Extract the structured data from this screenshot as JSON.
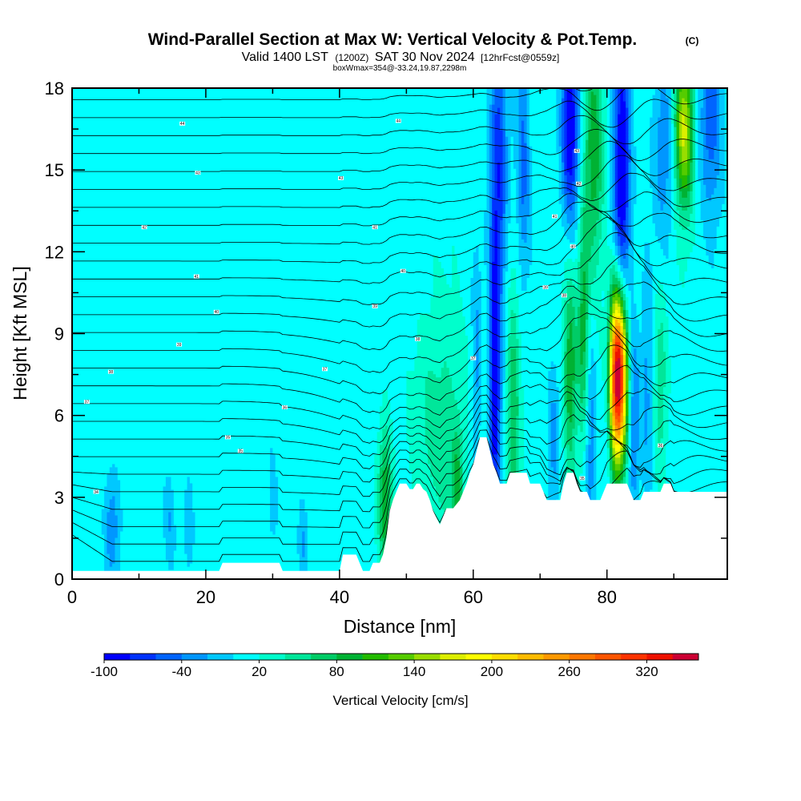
{
  "chart_data": {
    "type": "contour-cross-section",
    "title": "Wind-Parallel Section at Max W: Vertical Velocity & Pot.Temp.",
    "copyright_mark": "(C)",
    "subtitle": {
      "valid_prefix": "Valid 1400 LST",
      "utc_time": "(1200Z)",
      "date": "SAT 30 Nov 2024",
      "forecast_info": "[12hrFcst@0559z]",
      "box_info": "boxWmax=354@-33.24,19.87,2298m"
    },
    "xlabel": "Distance [nm]",
    "ylabel": "Height [Kft MSL]",
    "xlim": [
      0,
      98
    ],
    "ylim": [
      0,
      18
    ],
    "x_ticks": [
      0,
      20,
      40,
      60,
      80
    ],
    "y_ticks": [
      0,
      3,
      6,
      9,
      12,
      15,
      18
    ],
    "colorbar": {
      "title": "Vertical Velocity [cm/s]",
      "min": -100,
      "step": 20,
      "tick_labels": [
        "-100",
        "-40",
        "20",
        "80",
        "140",
        "200",
        "260",
        "320"
      ],
      "colors": [
        "#0000ff",
        "#0032ff",
        "#0064ff",
        "#0096ff",
        "#00c8ff",
        "#00ffff",
        "#00ffcc",
        "#00e69a",
        "#00cc66",
        "#00b233",
        "#22bb00",
        "#55cc00",
        "#99dd00",
        "#ddee00",
        "#ffff00",
        "#ffdd00",
        "#ffbb00",
        "#ff9900",
        "#ff7700",
        "#ff5500",
        "#ff3300",
        "#ee1100",
        "#cc0033"
      ]
    },
    "terrain_kft": [
      [
        0,
        0.3
      ],
      [
        22,
        0.3
      ],
      [
        22.5,
        0.6
      ],
      [
        31,
        0.6
      ],
      [
        31.5,
        0.3
      ],
      [
        40,
        0.3
      ],
      [
        40.5,
        0.9
      ],
      [
        42.5,
        0.9
      ],
      [
        43,
        0.6
      ],
      [
        43.5,
        0.3
      ],
      [
        44.5,
        0.3
      ],
      [
        45,
        0.6
      ],
      [
        46,
        0.6
      ],
      [
        46.5,
        0.9
      ],
      [
        47,
        1.5
      ],
      [
        47.5,
        2.5
      ],
      [
        48,
        2.9
      ],
      [
        48.5,
        3.2
      ],
      [
        49,
        3.5
      ],
      [
        50,
        3.5
      ],
      [
        50.5,
        3.3
      ],
      [
        51,
        3.3
      ],
      [
        51.5,
        3.5
      ],
      [
        52,
        3.5
      ],
      [
        52.5,
        3.3
      ],
      [
        53,
        3.2
      ],
      [
        53.5,
        2.9
      ],
      [
        54,
        2.5
      ],
      [
        55,
        2.0
      ],
      [
        55.5,
        2.3
      ],
      [
        56,
        2.6
      ],
      [
        57,
        2.6
      ],
      [
        58,
        2.9
      ],
      [
        58.5,
        3.2
      ],
      [
        59,
        3.5
      ],
      [
        59.5,
        3.9
      ],
      [
        60,
        4.2
      ],
      [
        60.5,
        4.7
      ],
      [
        61,
        5.2
      ],
      [
        62,
        5.2
      ],
      [
        62.5,
        4.7
      ],
      [
        63,
        4.2
      ],
      [
        63.5,
        3.9
      ],
      [
        64,
        3.5
      ],
      [
        65,
        3.5
      ],
      [
        65.5,
        3.9
      ],
      [
        68,
        3.9
      ],
      [
        68.5,
        3.5
      ],
      [
        70,
        3.5
      ],
      [
        70.5,
        3.2
      ],
      [
        71,
        2.9
      ],
      [
        73,
        2.9
      ],
      [
        73.5,
        3.5
      ],
      [
        74,
        3.9
      ],
      [
        75,
        3.9
      ],
      [
        75.5,
        3.5
      ],
      [
        76,
        3.2
      ],
      [
        77,
        3.2
      ],
      [
        77.5,
        2.9
      ],
      [
        79,
        2.9
      ],
      [
        79.5,
        3.2
      ],
      [
        80,
        3.5
      ],
      [
        83,
        3.5
      ],
      [
        83.5,
        3.2
      ],
      [
        84,
        2.9
      ],
      [
        85,
        2.9
      ],
      [
        85.5,
        3.2
      ],
      [
        88,
        3.2
      ],
      [
        88.5,
        3.5
      ],
      [
        89.5,
        3.5
      ],
      [
        90,
        3.2
      ],
      [
        98,
        3.2
      ]
    ],
    "w_features": [
      {
        "x": 6.0,
        "z": 2.0,
        "sx": 0.8,
        "sz": 1.5,
        "w": -45
      },
      {
        "x": 14.5,
        "z": 2.2,
        "sx": 0.6,
        "sz": 1.2,
        "w": -30
      },
      {
        "x": 17.5,
        "z": 2.0,
        "sx": 0.5,
        "sz": 1.2,
        "w": -30
      },
      {
        "x": 30.0,
        "z": 2.5,
        "sx": 0.6,
        "sz": 1.5,
        "w": -20
      },
      {
        "x": 34.5,
        "z": 1.3,
        "sx": 0.5,
        "sz": 1.2,
        "w": -30
      },
      {
        "x": 46.8,
        "z": 3.0,
        "sx": 0.7,
        "sz": 1.8,
        "w": 90
      },
      {
        "x": 55.0,
        "z": 5.5,
        "sx": 2.5,
        "sz": 3.0,
        "w": 40
      },
      {
        "x": 57.5,
        "z": 3.2,
        "sx": 0.6,
        "sz": 1.5,
        "w": 70
      },
      {
        "x": 60.5,
        "z": 7.5,
        "sx": 0.5,
        "sz": 3.0,
        "w": -40
      },
      {
        "x": 63.2,
        "z": 7.0,
        "sx": 0.6,
        "sz": 4.0,
        "w": -110
      },
      {
        "x": 63.8,
        "z": 15.0,
        "sx": 0.9,
        "sz": 4.0,
        "w": -80
      },
      {
        "x": 66.0,
        "z": 6.0,
        "sx": 0.7,
        "sz": 3.0,
        "w": 70
      },
      {
        "x": 67.5,
        "z": 15.5,
        "sx": 0.7,
        "sz": 3.0,
        "w": -60
      },
      {
        "x": 72.0,
        "z": 5.0,
        "sx": 0.6,
        "sz": 2.0,
        "w": -40
      },
      {
        "x": 74.5,
        "z": 7.5,
        "sx": 0.7,
        "sz": 2.5,
        "w": 90
      },
      {
        "x": 74.5,
        "z": 16.5,
        "sx": 0.9,
        "sz": 2.5,
        "w": -115
      },
      {
        "x": 76.5,
        "z": 9.0,
        "sx": 0.6,
        "sz": 3.0,
        "w": 80
      },
      {
        "x": 77.5,
        "z": 5.5,
        "sx": 0.7,
        "sz": 3.0,
        "w": -50
      },
      {
        "x": 78.0,
        "z": 15.5,
        "sx": 1.0,
        "sz": 3.5,
        "w": 80
      },
      {
        "x": 80.0,
        "z": 6.5,
        "sx": 0.5,
        "sz": 2.5,
        "w": -40
      },
      {
        "x": 81.7,
        "z": 7.5,
        "sx": 0.95,
        "sz": 2.3,
        "w": 400
      },
      {
        "x": 82.2,
        "z": 14.0,
        "sx": 0.9,
        "sz": 5.0,
        "w": -120
      },
      {
        "x": 84.0,
        "z": 6.0,
        "sx": 0.6,
        "sz": 2.5,
        "w": -60
      },
      {
        "x": 86.0,
        "z": 7.0,
        "sx": 0.6,
        "sz": 3.0,
        "w": -40
      },
      {
        "x": 88.0,
        "z": 7.5,
        "sx": 0.7,
        "sz": 2.5,
        "w": 40
      },
      {
        "x": 88.5,
        "z": 16.0,
        "sx": 1.2,
        "sz": 2.5,
        "w": -50
      },
      {
        "x": 91.5,
        "z": 16.5,
        "sx": 1.0,
        "sz": 2.0,
        "w": 160
      },
      {
        "x": 95.5,
        "z": 17.0,
        "sx": 1.2,
        "sz": 2.5,
        "w": -70
      }
    ],
    "theta_contour_labels": [
      {
        "x": 16.5,
        "z": 16.7,
        "text": "44"
      },
      {
        "x": 48.8,
        "z": 16.8,
        "text": "44"
      },
      {
        "x": 75.5,
        "z": 15.7,
        "text": "43"
      },
      {
        "x": 18.8,
        "z": 14.9,
        "text": "43"
      },
      {
        "x": 40.2,
        "z": 14.7,
        "text": "43"
      },
      {
        "x": 75.8,
        "z": 14.5,
        "text": "42"
      },
      {
        "x": 10.8,
        "z": 12.9,
        "text": "42"
      },
      {
        "x": 45.3,
        "z": 12.9,
        "text": "41"
      },
      {
        "x": 72.2,
        "z": 13.3,
        "text": "41"
      },
      {
        "x": 74.9,
        "z": 12.2,
        "text": "40"
      },
      {
        "x": 18.6,
        "z": 11.1,
        "text": "41"
      },
      {
        "x": 49.5,
        "z": 11.3,
        "text": "40"
      },
      {
        "x": 70.8,
        "z": 10.7,
        "text": "39"
      },
      {
        "x": 73.6,
        "z": 10.4,
        "text": "38"
      },
      {
        "x": 45.3,
        "z": 10.0,
        "text": "39"
      },
      {
        "x": 21.6,
        "z": 9.8,
        "text": "40"
      },
      {
        "x": 51.7,
        "z": 8.8,
        "text": "38"
      },
      {
        "x": 16.0,
        "z": 8.6,
        "text": "39"
      },
      {
        "x": 60.0,
        "z": 8.1,
        "text": "37"
      },
      {
        "x": 37.8,
        "z": 7.7,
        "text": "37"
      },
      {
        "x": 5.8,
        "z": 7.6,
        "text": "38"
      },
      {
        "x": 2.2,
        "z": 6.5,
        "text": "37"
      },
      {
        "x": 31.8,
        "z": 6.3,
        "text": "36"
      },
      {
        "x": 23.3,
        "z": 5.2,
        "text": "35"
      },
      {
        "x": 25.2,
        "z": 4.7,
        "text": "35"
      },
      {
        "x": 88.0,
        "z": 4.9,
        "text": "36"
      },
      {
        "x": 3.6,
        "z": 3.2,
        "text": "34"
      },
      {
        "x": 76.3,
        "z": 3.7,
        "text": "35"
      }
    ]
  }
}
